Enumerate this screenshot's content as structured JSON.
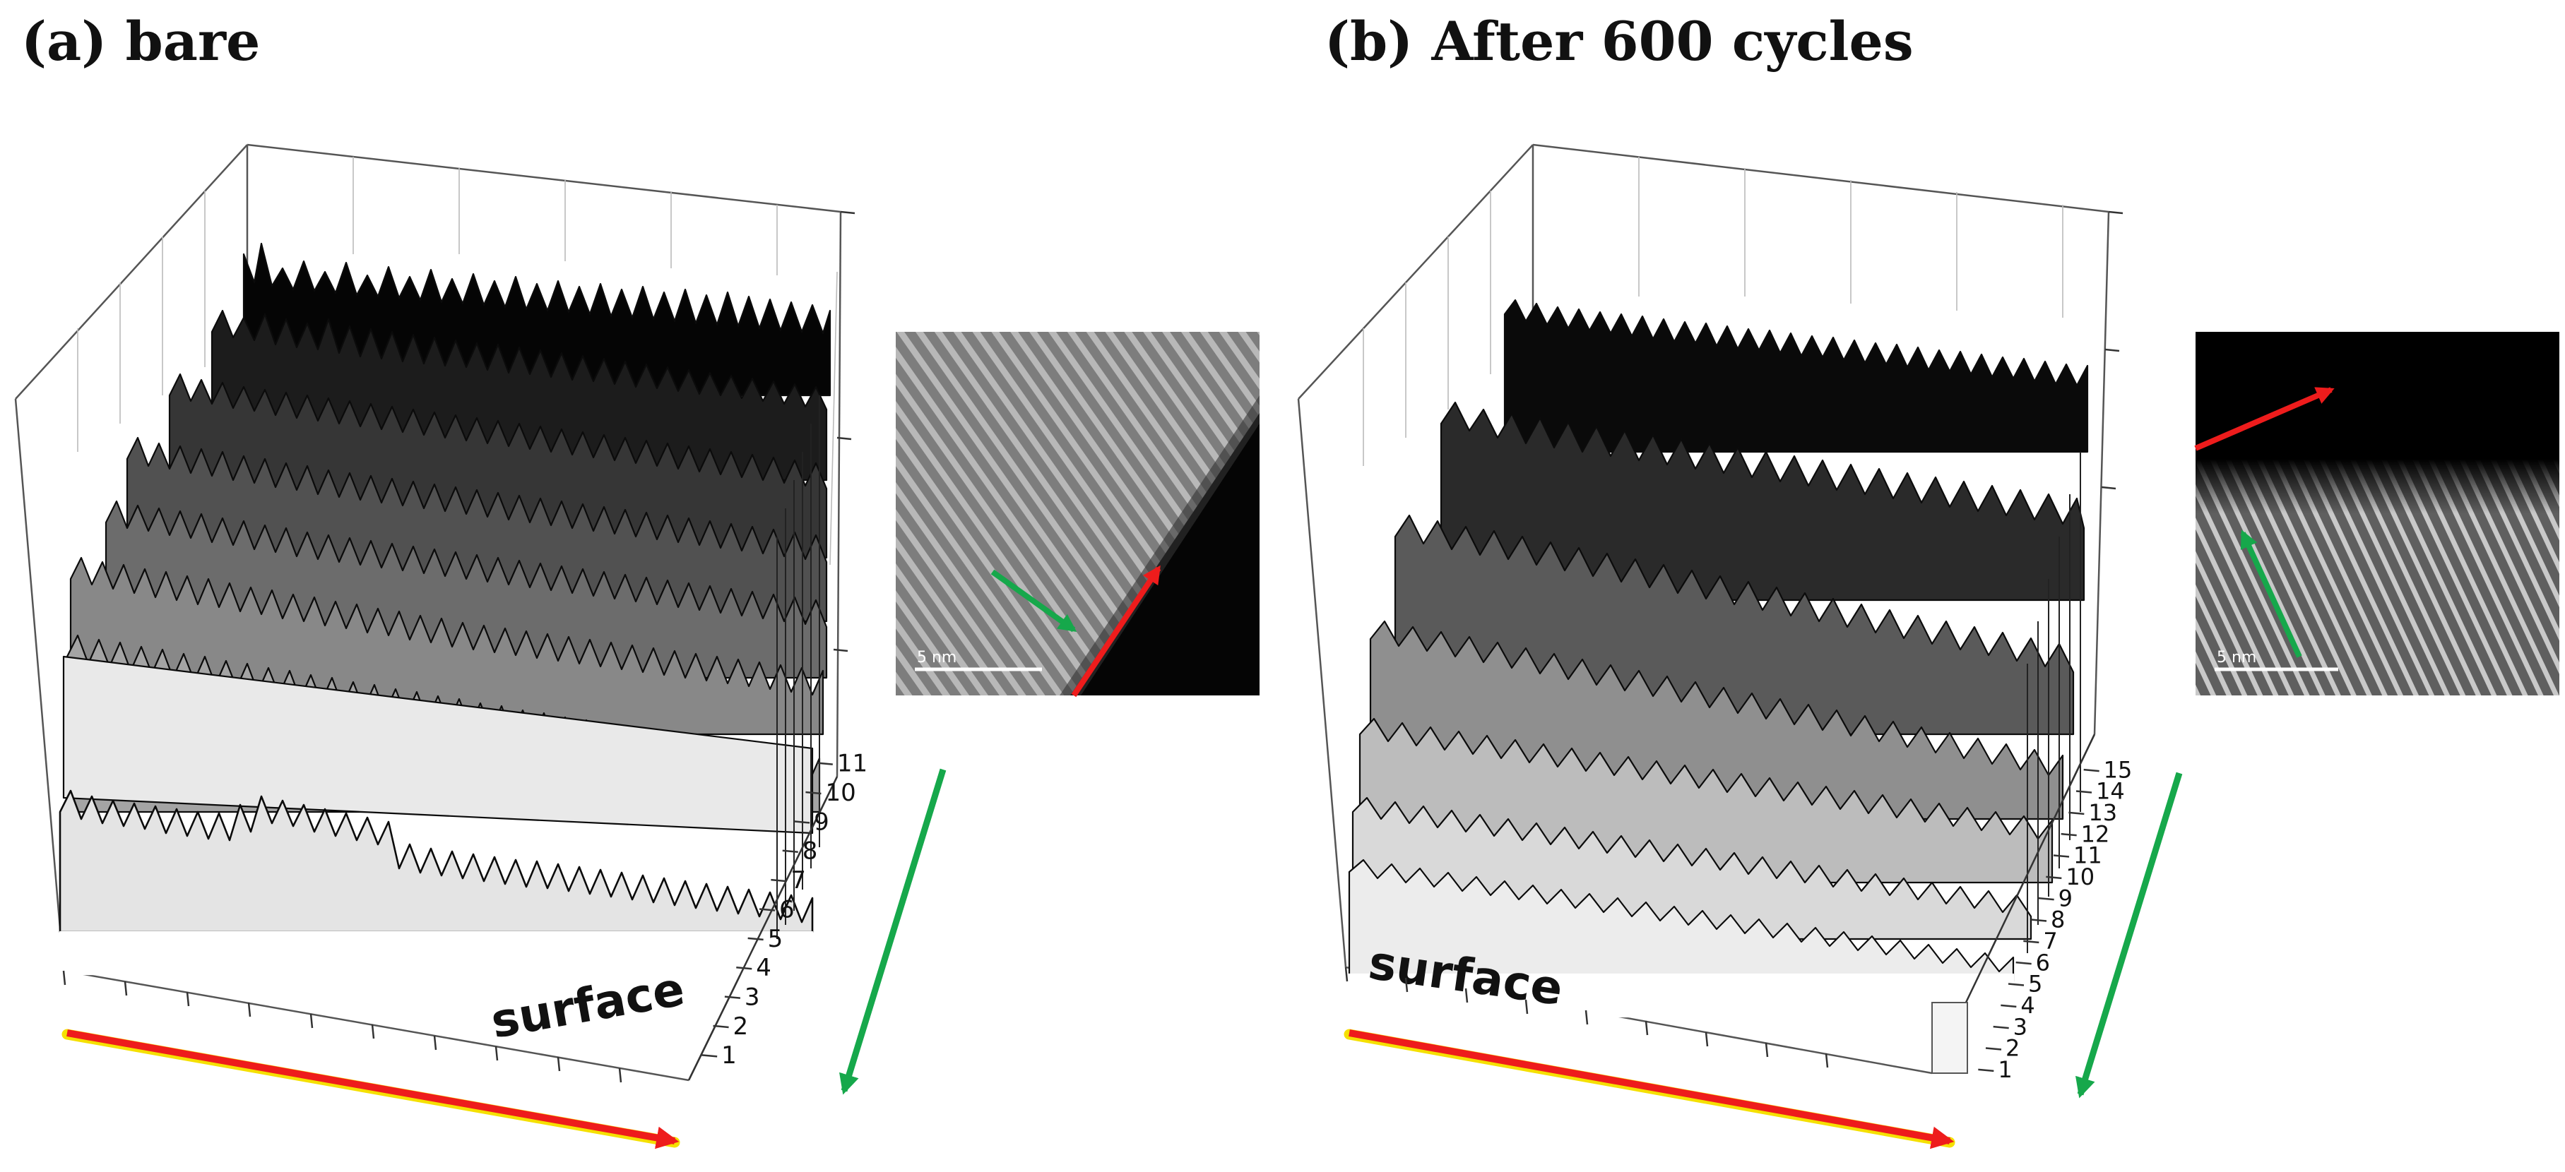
{
  "panels": [
    {
      "id": "a",
      "title": "(a) bare",
      "surface_label": "surface",
      "layer_ticks": [
        "1",
        "2",
        "3",
        "4",
        "5",
        "6",
        "7",
        "8",
        "9",
        "10",
        "11"
      ],
      "inset_scalebar": "5 nm"
    },
    {
      "id": "b",
      "title": "(b) After 600 cycles",
      "surface_label": "surface",
      "layer_ticks": [
        "1",
        "2",
        "3",
        "4",
        "5",
        "6",
        "7",
        "8",
        "9",
        "10",
        "11",
        "12",
        "13",
        "14",
        "15"
      ],
      "inset_scalebar": "5 nm"
    }
  ],
  "colors": {
    "red_arrow": "#ee1c1c",
    "green_arrow": "#16a84b",
    "arrow_glow": "#f5e000"
  }
}
